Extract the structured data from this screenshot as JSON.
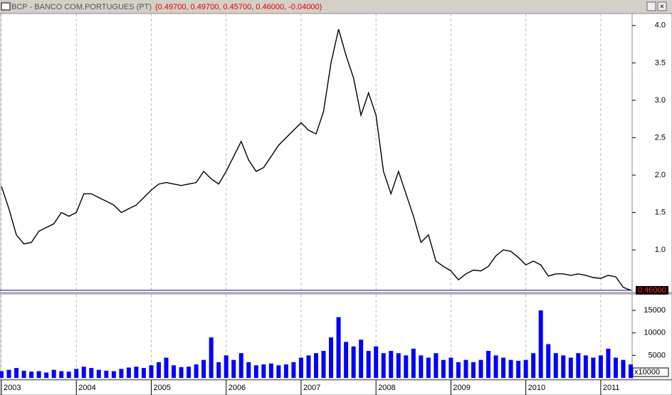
{
  "chart_data": {
    "type": "line",
    "title": "BCP - BANCO COM.PORTUGUES (PT)",
    "subtitle": "(0.49700, 0.49700, 0.45700, 0.46000, -0.04000)",
    "x": [
      2003.0,
      2003.1,
      2003.2,
      2003.3,
      2003.4,
      2003.5,
      2003.6,
      2003.7,
      2003.8,
      2003.9,
      2004.0,
      2004.1,
      2004.2,
      2004.3,
      2004.4,
      2004.5,
      2004.6,
      2004.7,
      2004.8,
      2004.9,
      2005.0,
      2005.1,
      2005.2,
      2005.3,
      2005.4,
      2005.5,
      2005.6,
      2005.7,
      2005.8,
      2005.9,
      2006.0,
      2006.1,
      2006.2,
      2006.3,
      2006.4,
      2006.5,
      2006.6,
      2006.7,
      2006.8,
      2006.9,
      2007.0,
      2007.1,
      2007.2,
      2007.3,
      2007.4,
      2007.5,
      2007.6,
      2007.7,
      2007.8,
      2007.9,
      2008.0,
      2008.1,
      2008.2,
      2008.3,
      2008.4,
      2008.5,
      2008.6,
      2008.7,
      2008.8,
      2008.9,
      2009.0,
      2009.1,
      2009.2,
      2009.3,
      2009.4,
      2009.5,
      2009.6,
      2009.7,
      2009.8,
      2009.9,
      2010.0,
      2010.1,
      2010.2,
      2010.3,
      2010.4,
      2010.5,
      2010.6,
      2010.7,
      2010.8,
      2010.9,
      2011.0,
      2011.1,
      2011.2,
      2011.3,
      2011.4
    ],
    "series": [
      {
        "name": "BCP",
        "color": "#000000",
        "values": [
          1.85,
          1.55,
          1.2,
          1.08,
          1.1,
          1.25,
          1.3,
          1.35,
          1.5,
          1.45,
          1.5,
          1.75,
          1.75,
          1.7,
          1.65,
          1.6,
          1.5,
          1.55,
          1.6,
          1.7,
          1.8,
          1.88,
          1.9,
          1.88,
          1.86,
          1.88,
          1.9,
          2.05,
          1.95,
          1.88,
          2.05,
          2.25,
          2.45,
          2.2,
          2.05,
          2.1,
          2.25,
          2.4,
          2.5,
          2.6,
          2.7,
          2.6,
          2.55,
          2.85,
          3.5,
          3.95,
          3.6,
          3.3,
          2.8,
          3.1,
          2.8,
          2.05,
          1.75,
          2.05,
          1.75,
          1.45,
          1.1,
          1.2,
          0.85,
          0.78,
          0.72,
          0.6,
          0.68,
          0.73,
          0.72,
          0.78,
          0.92,
          1.0,
          0.98,
          0.9,
          0.8,
          0.85,
          0.8,
          0.65,
          0.68,
          0.68,
          0.66,
          0.68,
          0.66,
          0.63,
          0.62,
          0.66,
          0.64,
          0.5,
          0.46
        ]
      }
    ],
    "xlim": [
      2003.0,
      2011.4
    ],
    "xticks": [
      2003,
      2004,
      2005,
      2006,
      2007,
      2008,
      2009,
      2010,
      2011
    ],
    "ylim": [
      0.44,
      4.16
    ],
    "yticks": [
      {
        "value": 1.0,
        "label": "1.0"
      },
      1.5,
      {
        "value": 2.0,
        "label": "2.0"
      },
      2.5,
      {
        "value": 3.0,
        "label": "3.0"
      },
      3.5,
      {
        "value": 4.0,
        "label": "4.0"
      }
    ],
    "last_price": {
      "value": 0.46,
      "label": "0.46000"
    },
    "last_price_color": "#0000cc",
    "grid": true,
    "volume": {
      "color": "#0000ff",
      "values": [
        1500,
        1800,
        2200,
        1600,
        1400,
        1500,
        1200,
        1800,
        1500,
        1400,
        2000,
        2500,
        2200,
        1800,
        1600,
        1500,
        2000,
        2300,
        2500,
        2200,
        2800,
        3500,
        4500,
        2800,
        2400,
        2500,
        3000,
        4000,
        9000,
        3500,
        5000,
        4000,
        5500,
        3500,
        2800,
        3000,
        3200,
        2800,
        3000,
        3500,
        4500,
        5000,
        5500,
        6000,
        9000,
        13500,
        8000,
        7000,
        8500,
        6000,
        7000,
        5500,
        6000,
        5500,
        5000,
        6500,
        5000,
        4500,
        5500,
        4000,
        4500,
        3500,
        4000,
        3500,
        4000,
        6000,
        5000,
        4500,
        4000,
        3800,
        4000,
        5500,
        15000,
        7500,
        5500,
        5000,
        4500,
        5500,
        5000,
        4500,
        5000,
        6500,
        4500,
        4000,
        3000
      ],
      "ylim": [
        0,
        18500
      ],
      "yticks": [
        5000,
        10000,
        15000
      ],
      "unit_label": "x10000"
    }
  }
}
